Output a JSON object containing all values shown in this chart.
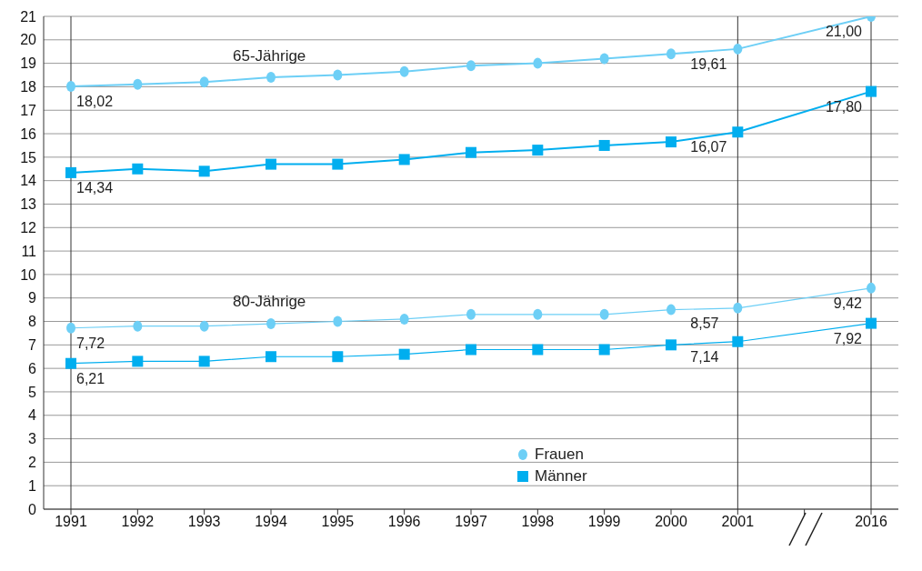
{
  "chart_data": {
    "type": "line",
    "categories": [
      "1991",
      "1992",
      "1993",
      "1994",
      "1995",
      "1996",
      "1997",
      "1998",
      "1999",
      "2000",
      "2001",
      null,
      "2016"
    ],
    "series": [
      {
        "name": "Frauen",
        "color": "#6dcff6",
        "marker": "circle",
        "values": [
          18.02,
          18.1,
          18.2,
          18.4,
          18.5,
          18.65,
          18.9,
          19.0,
          19.2,
          19.4,
          19.61,
          null,
          21.0
        ],
        "value_labels": [
          "18,02",
          null,
          null,
          null,
          null,
          null,
          null,
          null,
          null,
          null,
          "19,61",
          null,
          "21,00"
        ]
      },
      {
        "name": "Männer",
        "color": "#00aeef",
        "marker": "square",
        "values": [
          14.34,
          14.5,
          14.4,
          14.7,
          14.7,
          14.9,
          15.2,
          15.3,
          15.5,
          15.65,
          16.07,
          null,
          17.8
        ],
        "value_labels": [
          "14,34",
          null,
          null,
          null,
          null,
          null,
          null,
          null,
          null,
          null,
          "16,07",
          null,
          "17,80"
        ]
      },
      {
        "color": "#6dcff6",
        "marker": "circle",
        "values": [
          7.72,
          7.8,
          7.8,
          7.9,
          8.0,
          8.1,
          8.3,
          8.3,
          8.3,
          8.5,
          8.57,
          null,
          9.42
        ],
        "value_labels": [
          "7,72",
          null,
          null,
          null,
          null,
          null,
          null,
          null,
          null,
          null,
          "8,57",
          null,
          "9,42"
        ]
      },
      {
        "color": "#00aeef",
        "marker": "square",
        "values": [
          6.21,
          6.3,
          6.3,
          6.5,
          6.5,
          6.6,
          6.8,
          6.8,
          6.8,
          7.0,
          7.14,
          null,
          7.92
        ],
        "value_labels": [
          "6,21",
          null,
          null,
          null,
          null,
          null,
          null,
          null,
          null,
          null,
          "7,14",
          null,
          "7,92"
        ]
      }
    ],
    "ylim": [
      0,
      21
    ],
    "yticks": [
      0,
      1,
      2,
      3,
      4,
      5,
      6,
      7,
      8,
      9,
      10,
      11,
      12,
      13,
      14,
      15,
      16,
      17,
      18,
      19,
      20,
      21
    ],
    "grid": "y",
    "legend": "bottom",
    "line_style": "solid",
    "ref_lines": [
      {
        "axis": "x",
        "value": "1991",
        "color": "#333333"
      },
      {
        "axis": "x",
        "value": "2001",
        "color": "#333333"
      },
      {
        "axis": "x",
        "value": "2016",
        "color": "#333333"
      }
    ],
    "annotations": [
      "65-Jährige",
      "80-Jährige"
    ]
  }
}
